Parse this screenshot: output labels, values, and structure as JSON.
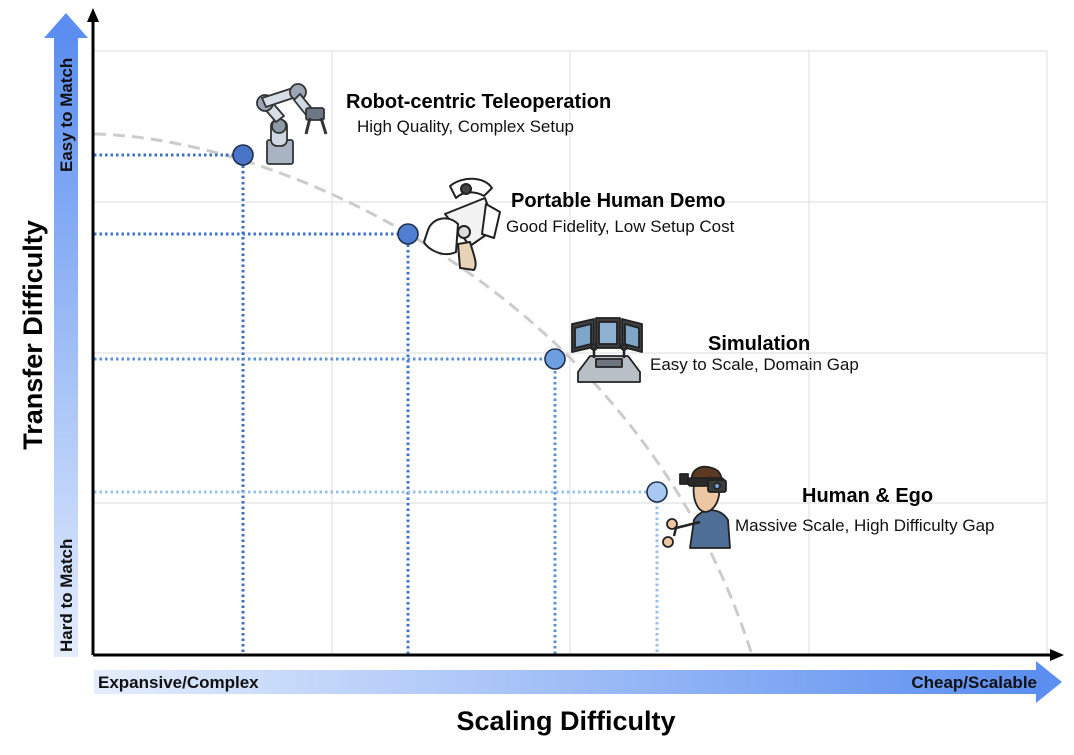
{
  "axes": {
    "x_title": "Scaling Difficulty",
    "y_title": "Transfer Difficulty",
    "x_low_label": "Expansive/Complex",
    "x_high_label": "Cheap/Scalable",
    "y_low_label": "Hard to Match",
    "y_high_label": "Easy to Match",
    "arrow_color_light": "#e4edfd",
    "arrow_color_dark": "#5b8ef0"
  },
  "frontier": {
    "style": "dashed",
    "color": "#cccccc"
  },
  "points": [
    {
      "title": "Robot-centric Teleoperation",
      "subtitle": "High Quality, Complex Setup",
      "icon": "robot-arm-icon",
      "color": "#4a74c8"
    },
    {
      "title": "Portable Human Demo",
      "subtitle": "Good Fidelity, Low Setup Cost",
      "icon": "handheld-gripper-icon",
      "color": "#4f7fd0"
    },
    {
      "title": "Simulation",
      "subtitle": "Easy to Scale, Domain Gap",
      "icon": "simulator-console-icon",
      "color": "#6f9ee0"
    },
    {
      "title": "Human & Ego",
      "subtitle": "Massive Scale, High Difficulty Gap",
      "icon": "head-camera-person-icon",
      "color": "#a9c8f0"
    }
  ]
}
